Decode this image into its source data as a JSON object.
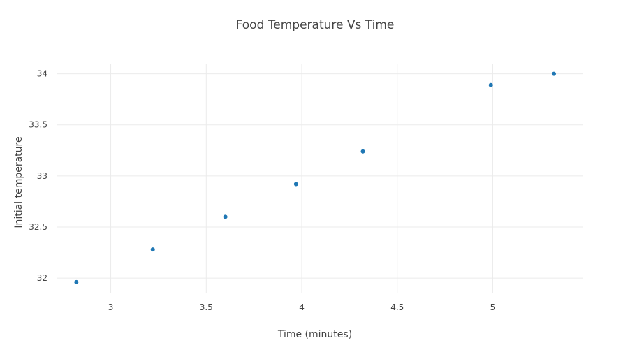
{
  "chart_data": {
    "type": "scatter",
    "title": "Food Temperature Vs Time",
    "xlabel": "Time (minutes)",
    "ylabel": "Initial temperature",
    "xlim": [
      2.72,
      5.47
    ],
    "ylim": [
      31.85,
      34.1
    ],
    "grid": true,
    "legend": "none",
    "x_ticks": [
      3,
      3.5,
      4,
      4.5,
      5
    ],
    "x_tick_labels": [
      "3",
      "3.5",
      "4",
      "4.5",
      "5"
    ],
    "y_ticks": [
      32,
      32.5,
      33,
      33.5,
      34
    ],
    "y_tick_labels": [
      "32",
      "32.5",
      "33",
      "33.5",
      "34"
    ],
    "marker_color": "#1f77b4",
    "series": [
      {
        "x": [
          2.82,
          3.22,
          3.6,
          3.97,
          4.32,
          4.99,
          5.32
        ],
        "y": [
          31.96,
          32.28,
          32.6,
          32.92,
          33.24,
          33.89,
          34.0
        ]
      }
    ]
  }
}
